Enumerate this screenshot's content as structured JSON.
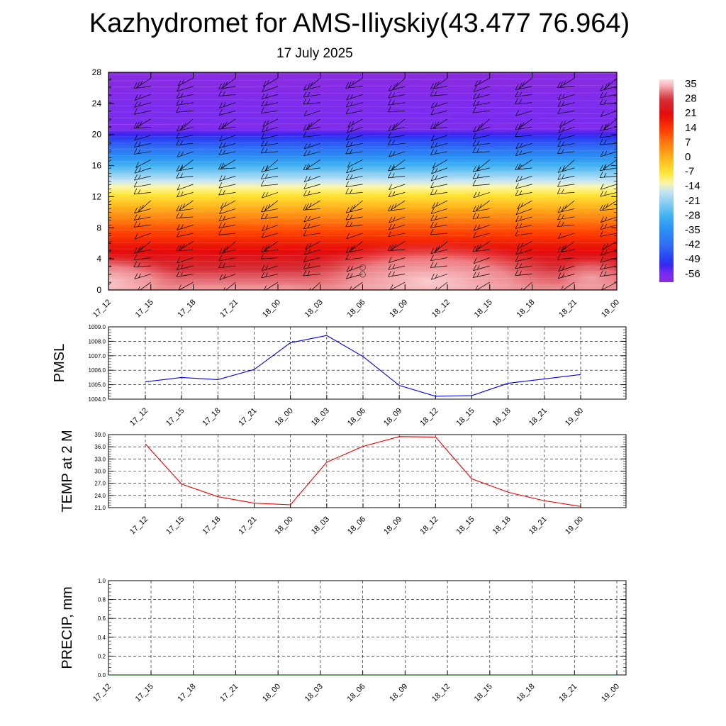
{
  "title": "Kazhydromet for AMS-Iliyskiy(43.477 76.964)",
  "subtitle": "17 July 2025",
  "time_labels": [
    "17_12",
    "17_15",
    "17_18",
    "17_21",
    "18_00",
    "18_03",
    "18_06",
    "18_09",
    "18_12",
    "18_15",
    "18_18",
    "18_21",
    "19_00"
  ],
  "chart_data": [
    {
      "type": "heatmap",
      "title": "",
      "xlabel": "",
      "ylabel": "",
      "categories": [
        "17_12",
        "17_15",
        "17_18",
        "17_21",
        "18_00",
        "18_03",
        "18_06",
        "18_09",
        "18_12",
        "18_15",
        "18_18",
        "18_21",
        "19_00"
      ],
      "yticks": [
        0,
        4,
        8,
        12,
        16,
        20,
        24,
        28
      ],
      "ylim": [
        0,
        28
      ],
      "colorbar": {
        "labels": [
          "35",
          "28",
          "21",
          "14",
          "7",
          "0",
          "-7",
          "-14",
          "-21",
          "-28",
          "-35",
          "-42",
          "-49",
          "-56"
        ],
        "range": [
          -60,
          38
        ]
      },
      "temperature_profile": {
        "levels": [
          0,
          2,
          4,
          6,
          8,
          10,
          12,
          14,
          16,
          18,
          20,
          21,
          22,
          24,
          26,
          28
        ],
        "values": [
          34,
          30,
          24,
          18,
          11,
          3,
          -6,
          -16,
          -28,
          -40,
          -52,
          -58,
          -56,
          -57,
          -59,
          -60
        ]
      },
      "overlay": "wind barbs"
    },
    {
      "type": "line",
      "ylabel": "PMSL",
      "categories": [
        "17_12",
        "17_15",
        "17_18",
        "17_21",
        "18_00",
        "18_03",
        "18_06",
        "18_09",
        "18_12",
        "18_15",
        "18_18",
        "18_21",
        "19_00"
      ],
      "yticks": [
        "1004.0",
        "1005.0",
        "1006.0",
        "1007.0",
        "1008.0",
        "1009.0"
      ],
      "ylim": [
        1004.0,
        1009.0
      ],
      "color": "#0000ee",
      "grid": true,
      "series": [
        {
          "values": [
            1005.2,
            1005.5,
            1005.35,
            1006.05,
            1007.9,
            1008.4,
            1006.95,
            1004.95,
            1004.2,
            1004.25,
            1005.1,
            1005.4,
            1005.7
          ]
        }
      ]
    },
    {
      "type": "line",
      "ylabel": "TEMP at 2 M",
      "categories": [
        "17_12",
        "17_15",
        "17_18",
        "17_21",
        "18_00",
        "18_03",
        "18_06",
        "18_09",
        "18_12",
        "18_15",
        "18_18",
        "18_21",
        "19_00"
      ],
      "yticks": [
        "21.0",
        "24.0",
        "27.0",
        "30.0",
        "33.0",
        "36.0",
        "39.0"
      ],
      "ylim": [
        21.0,
        39.0
      ],
      "color": "#ee0000",
      "grid": true,
      "series": [
        {
          "values": [
            36.7,
            26.8,
            23.7,
            22.1,
            21.7,
            32.2,
            36.1,
            38.5,
            38.4,
            28.1,
            24.8,
            22.7,
            21.3
          ]
        }
      ]
    },
    {
      "type": "line",
      "ylabel": "PRECIP, mm",
      "categories": [
        "17_12",
        "17_15",
        "17_18",
        "17_21",
        "18_00",
        "18_03",
        "18_06",
        "18_09",
        "18_12",
        "18_15",
        "18_18",
        "18_21",
        "19_00"
      ],
      "yticks": [
        "0.0",
        "0.2",
        "0.4",
        "0.6",
        "0.8",
        "1.0"
      ],
      "ylim": [
        0.0,
        1.0
      ],
      "color": "#006400",
      "grid": true,
      "series": [
        {
          "values": [
            0,
            0,
            0,
            0,
            0,
            0,
            0,
            0,
            0,
            0,
            0,
            0,
            0
          ]
        }
      ]
    }
  ]
}
